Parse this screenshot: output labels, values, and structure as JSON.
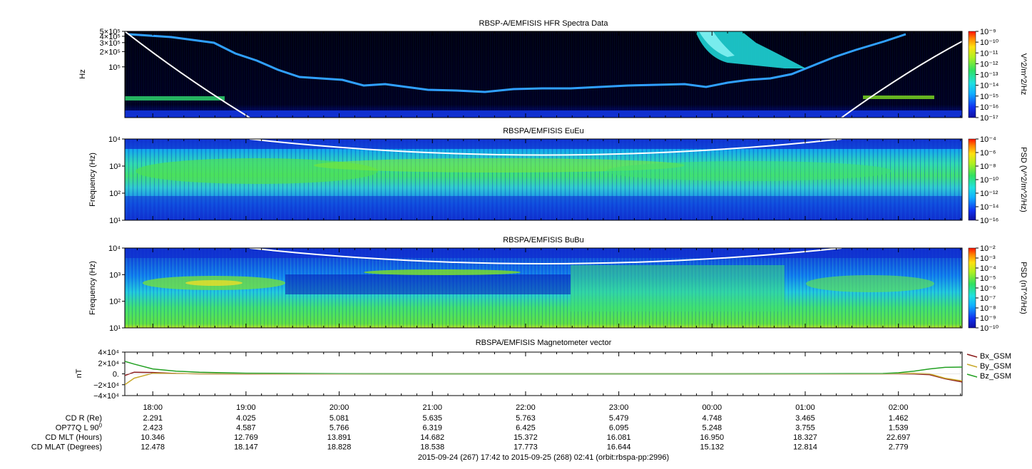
{
  "panels": [
    {
      "title": "RBSP-A/EMFISIS  HFR Spectra Data",
      "ylabel": "Hz",
      "yticks": [
        {
          "label": "5×10⁵",
          "value": 500000
        },
        {
          "label": "4×10⁵",
          "value": 400000
        },
        {
          "label": "3×10⁵",
          "value": 300000
        },
        {
          "label": "2×10⁵",
          "value": 200000
        },
        {
          "label": "10⁵",
          "value": 100000
        }
      ],
      "ylim": [
        10000,
        500000
      ],
      "colorbar_label": "V^2/m^2/Hz",
      "colorbar_ticks": [
        "10⁻⁹",
        "10⁻¹⁰",
        "10⁻¹¹",
        "10⁻¹²",
        "10⁻¹³",
        "10⁻¹⁴",
        "10⁻¹⁵",
        "10⁻¹⁶",
        "10⁻¹⁷"
      ]
    },
    {
      "title": "RBSPA/EMFISIS  EuEu",
      "ylabel": "Frequency (Hz)",
      "yticks": [
        {
          "label": "10⁴",
          "value": 10000
        },
        {
          "label": "10³",
          "value": 1000
        },
        {
          "label": "10²",
          "value": 100
        },
        {
          "label": "10¹",
          "value": 10
        }
      ],
      "ylim": [
        10,
        10000
      ],
      "colorbar_label": "PSD (V^2/m^2/Hz)",
      "colorbar_ticks": [
        "10⁻⁴",
        "10⁻⁶",
        "10⁻⁸",
        "10⁻¹⁰",
        "10⁻¹²",
        "10⁻¹⁴",
        "10⁻¹⁶"
      ]
    },
    {
      "title": "RBSPA/EMFISIS  BuBu",
      "ylabel": "Frequency (Hz)",
      "yticks": [
        {
          "label": "10⁴",
          "value": 10000
        },
        {
          "label": "10³",
          "value": 1000
        },
        {
          "label": "10²",
          "value": 100
        },
        {
          "label": "10¹",
          "value": 10
        }
      ],
      "ylim": [
        10,
        10000
      ],
      "colorbar_label": "PSD (nT^2/Hz)",
      "colorbar_ticks": [
        "10⁻²",
        "10⁻³",
        "10⁻⁴",
        "10⁻⁵",
        "10⁻⁶",
        "10⁻⁷",
        "10⁻⁸",
        "10⁻⁹",
        "10⁻¹⁰"
      ]
    }
  ],
  "chart_data": {
    "type": "line",
    "title": "RBSPA/EMFISIS  Magnetometer vector",
    "ylabel": "nT",
    "ylim": [
      -40000,
      40000
    ],
    "yticks": [
      {
        "label": "4×10⁴",
        "value": 40000
      },
      {
        "label": "2×10⁴",
        "value": 20000
      },
      {
        "label": "0.",
        "value": 0
      },
      {
        "label": "−2×10⁴",
        "value": -20000
      },
      {
        "label": "−4×10⁴",
        "value": -40000
      }
    ],
    "x": [
      "17:42",
      "17:48",
      "18:00",
      "18:15",
      "18:30",
      "19:00",
      "20:00",
      "21:00",
      "22:00",
      "23:00",
      "00:00",
      "01:00",
      "01:50",
      "02:00",
      "02:10",
      "02:20",
      "02:30",
      "02:41"
    ],
    "series": [
      {
        "name": "Bx_GSM",
        "color": "#8b1a1a",
        "values": [
          -3000,
          3000,
          2500,
          600,
          0,
          -200,
          0,
          0,
          0,
          0,
          0,
          0,
          0,
          0,
          -300,
          -1500,
          -9000,
          -15000
        ]
      },
      {
        "name": "By_GSM",
        "color": "#c8a82a",
        "values": [
          -20000,
          -8000,
          1000,
          500,
          0,
          0,
          0,
          0,
          0,
          0,
          0,
          0,
          0,
          500,
          1000,
          0,
          -8000,
          -13000
        ]
      },
      {
        "name": "Bz_GSM",
        "color": "#22a022",
        "values": [
          23000,
          18000,
          9000,
          5000,
          3000,
          1200,
          300,
          0,
          0,
          0,
          0,
          200,
          700,
          2000,
          5000,
          9000,
          12000,
          12500
        ]
      }
    ],
    "legend": "right",
    "time_axis": {
      "ticks": [
        "18:00",
        "19:00",
        "20:00",
        "21:00",
        "22:00",
        "23:00",
        "00:00",
        "01:00",
        "02:00"
      ],
      "start": "17:42",
      "end": "02:41"
    }
  },
  "ephemeris": {
    "rows": [
      {
        "label": "CD R (Re)",
        "values": [
          "2.291",
          "4.025",
          "5.081",
          "5.635",
          "5.763",
          "5.479",
          "4.748",
          "3.465",
          "1.462"
        ]
      },
      {
        "label": "OP77Q L 90",
        "sup": "0",
        "values": [
          "2.423",
          "4.587",
          "5.766",
          "6.319",
          "6.425",
          "6.095",
          "5.248",
          "3.755",
          "1.539"
        ]
      },
      {
        "label": "CD MLT (Hours)",
        "values": [
          "10.346",
          "12.769",
          "13.891",
          "14.682",
          "15.372",
          "16.081",
          "16.950",
          "18.327",
          "22.697"
        ]
      },
      {
        "label": "CD MLAT (Degrees)",
        "values": [
          "12.478",
          "18.147",
          "18.828",
          "18.538",
          "17.773",
          "16.644",
          "15.132",
          "12.814",
          "2.779"
        ]
      }
    ]
  },
  "footer": "2015-09-24 (267) 17:42 to 2015-09-25 (268) 02:41 (orbit:rbspa-pp:2996)"
}
